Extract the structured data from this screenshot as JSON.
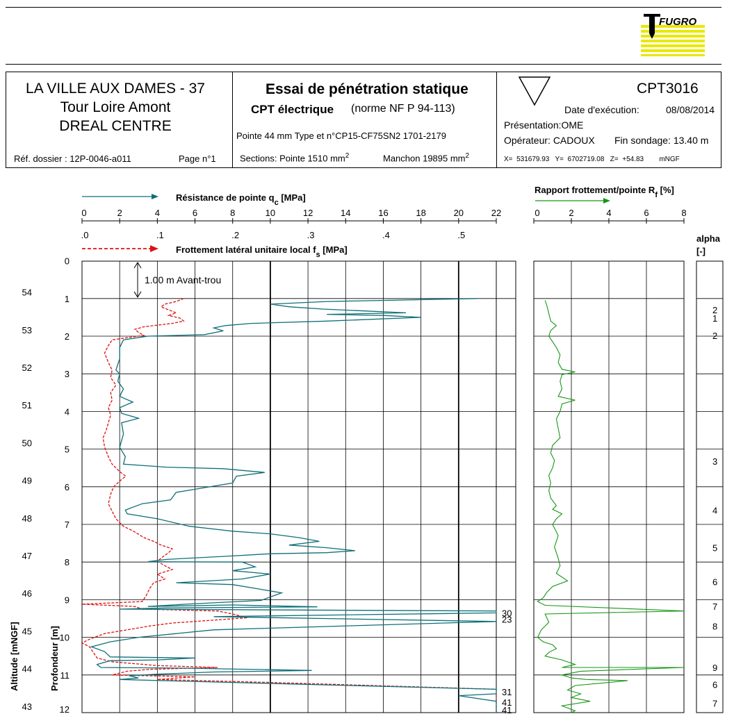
{
  "logo": {
    "text": "FUGRO",
    "color": "#e8e800"
  },
  "header": {
    "site_lines": [
      "LA VILLE AUX DAMES - 37",
      "Tour Loire Amont",
      "DREAL CENTRE"
    ],
    "ref_dossier": "Réf. dossier : 12P-0046-a011",
    "page": "Page n°1",
    "test_title": "Essai de pénétration statique",
    "cpt_type": "CPT électrique",
    "norme": "(norme NF P 94-113)",
    "pointe": "Pointe 44 mm  Type et n°CP15-CF75SN2   1701-2179",
    "sections_label": "Sections: Pointe 1510 mm",
    "manchon_label": "Manchon 19895  mm",
    "exponent": "2",
    "test_id": "CPT3016",
    "date_label": "Date d'exécution:",
    "date_value": "08/08/2014",
    "presentation": "Présentation:OME",
    "operateur": "Opérateur: CADOUX",
    "fin_sondage": "Fin sondage: 13.40 m",
    "coords": "X=  531679.93   Y=  6702719.08   Z=  +54.83        mNGF"
  },
  "chart_data": {
    "type": "line",
    "qc_axis": {
      "label": "Résistance de pointe q",
      "label_sub": "c",
      "label_unit": "[MPa]",
      "ticks": [
        "0",
        "2",
        "4",
        "6",
        "8",
        "10",
        "12",
        "14",
        "16",
        "18",
        "20",
        "22"
      ],
      "range": [
        0,
        22
      ]
    },
    "fs_axis": {
      "label": "Frottement latéral unitaire local  f",
      "label_sub": "s",
      "label_unit": "[MPa]",
      "ticks": [
        ".0",
        ".1",
        ".2",
        ".3",
        ".4",
        ".5"
      ],
      "range": [
        0,
        0.55
      ]
    },
    "rf_axis": {
      "label": "Rapport frottement/pointe R",
      "label_sub": "f",
      "label_unit": "[%]",
      "ticks": [
        "0",
        "2",
        "4",
        "6",
        "8"
      ],
      "range": [
        0,
        8
      ]
    },
    "depth_axis": {
      "label": "Profondeur [m]",
      "ticks": [
        "0",
        "1",
        "2",
        "3",
        "4",
        "5",
        "6",
        "7",
        "8",
        "9",
        "10",
        "11",
        "12"
      ],
      "range": [
        0,
        12
      ]
    },
    "altitude_axis": {
      "label": "Altitude [mNGF]",
      "ticks": [
        "54",
        "53",
        "52",
        "51",
        "50",
        "49",
        "48",
        "47",
        "46",
        "45",
        "44",
        "43"
      ]
    },
    "alpha_axis": {
      "label": "alpha",
      "unit": "[-]"
    },
    "predrill": {
      "text": "1.00  m Avant-trou",
      "depth": 1.0
    },
    "overflow_labels": [
      {
        "text": "30",
        "depth": 9.35
      },
      {
        "text": "23",
        "depth": 9.52
      },
      {
        "text": "31",
        "depth": 11.45
      },
      {
        "text": "41",
        "depth": 11.72
      },
      {
        "text": "41",
        "depth": 11.95
      }
    ],
    "alpha_labels": [
      {
        "text": "2",
        "depth": 1.3
      },
      {
        "text": "1",
        "depth": 1.52
      },
      {
        "text": "2",
        "depth": 1.98
      },
      {
        "text": "3",
        "depth": 5.32
      },
      {
        "text": "4",
        "depth": 6.62
      },
      {
        "text": "5",
        "depth": 7.62
      },
      {
        "text": "6",
        "depth": 8.52
      },
      {
        "text": "7",
        "depth": 9.18
      },
      {
        "text": "8",
        "depth": 9.7
      },
      {
        "text": "9",
        "depth": 10.8
      },
      {
        "text": "6",
        "depth": 11.25
      },
      {
        "text": "7",
        "depth": 11.75
      }
    ],
    "series": [
      {
        "name": "Résistance de pointe q",
        "color": "#0e6f78",
        "axis": "qc",
        "points": [
          [
            21.0,
            1.0
          ],
          [
            13.0,
            1.08
          ],
          [
            10.0,
            1.15
          ],
          [
            11.0,
            1.22
          ],
          [
            12.8,
            1.28
          ],
          [
            15.0,
            1.33
          ],
          [
            17.2,
            1.38
          ],
          [
            13.0,
            1.42
          ],
          [
            16.0,
            1.45
          ],
          [
            18.0,
            1.5
          ],
          [
            13.0,
            1.6
          ],
          [
            9.0,
            1.66
          ],
          [
            7.6,
            1.72
          ],
          [
            7.0,
            1.78
          ],
          [
            7.5,
            1.86
          ],
          [
            6.5,
            1.96
          ],
          [
            3.5,
            2.0
          ],
          [
            2.2,
            2.1
          ],
          [
            2.0,
            2.3
          ],
          [
            2.0,
            2.6
          ],
          [
            1.8,
            2.9
          ],
          [
            2.0,
            3.0
          ],
          [
            1.9,
            3.2
          ],
          [
            2.2,
            3.4
          ],
          [
            2.0,
            3.6
          ],
          [
            2.7,
            3.75
          ],
          [
            2.0,
            3.9
          ],
          [
            2.1,
            4.05
          ],
          [
            3.0,
            4.18
          ],
          [
            2.1,
            4.3
          ],
          [
            2.2,
            4.6
          ],
          [
            2.0,
            4.95
          ],
          [
            2.3,
            5.2
          ],
          [
            2.2,
            5.4
          ],
          [
            4.5,
            5.48
          ],
          [
            7.5,
            5.52
          ],
          [
            9.7,
            5.62
          ],
          [
            8.2,
            5.72
          ],
          [
            8.0,
            5.9
          ],
          [
            6.2,
            6.05
          ],
          [
            5.0,
            6.15
          ],
          [
            4.7,
            6.35
          ],
          [
            3.2,
            6.45
          ],
          [
            2.3,
            6.62
          ],
          [
            2.4,
            6.72
          ],
          [
            4.0,
            6.85
          ],
          [
            5.7,
            7.05
          ],
          [
            8.0,
            7.18
          ],
          [
            10.0,
            7.25
          ],
          [
            11.5,
            7.35
          ],
          [
            12.6,
            7.45
          ],
          [
            11.0,
            7.55
          ],
          [
            13.0,
            7.62
          ],
          [
            14.5,
            7.7
          ],
          [
            13.0,
            7.75
          ],
          [
            10.0,
            7.78
          ],
          [
            7.5,
            7.85
          ],
          [
            4.5,
            7.93
          ],
          [
            3.5,
            7.99
          ],
          [
            8.5,
            8.0
          ],
          [
            9.2,
            8.13
          ],
          [
            8.0,
            8.23
          ],
          [
            10.0,
            8.32
          ],
          [
            8.5,
            8.45
          ],
          [
            5.0,
            8.55
          ],
          [
            8.0,
            8.6
          ],
          [
            9.2,
            8.7
          ],
          [
            10.6,
            8.82
          ],
          [
            9.5,
            9.02
          ],
          [
            5.5,
            9.12
          ],
          [
            3.5,
            9.18
          ],
          [
            8.0,
            9.14
          ],
          [
            12.5,
            9.19
          ],
          [
            4.5,
            9.22
          ],
          [
            2.0,
            9.25
          ],
          [
            22.0,
            9.3
          ],
          [
            22.0,
            9.35
          ],
          [
            7.0,
            9.45
          ],
          [
            22.0,
            9.58
          ],
          [
            7.0,
            9.8
          ],
          [
            3.0,
            10.0
          ],
          [
            1.5,
            10.12
          ],
          [
            0.5,
            10.25
          ],
          [
            1.2,
            10.38
          ],
          [
            1.5,
            10.52
          ],
          [
            6.0,
            10.55
          ],
          [
            4.0,
            10.6
          ],
          [
            1.5,
            10.62
          ],
          [
            0.8,
            10.72
          ],
          [
            1.0,
            10.8
          ],
          [
            5.5,
            10.82
          ],
          [
            12.2,
            10.88
          ],
          [
            7.0,
            10.92
          ],
          [
            4.0,
            10.98
          ],
          [
            2.5,
            11.02
          ],
          [
            3.0,
            11.08
          ],
          [
            2.0,
            11.12
          ],
          [
            8.0,
            11.2
          ],
          [
            22.0,
            11.38
          ],
          [
            22.0,
            11.5
          ],
          [
            20.0,
            11.55
          ],
          [
            22.0,
            11.7
          ],
          [
            22.0,
            12.0
          ]
        ]
      },
      {
        "name": "Frottement latéral unitaire local  f",
        "color": "#dd1111",
        "axis": "fs",
        "dashed": true,
        "points": [
          [
            0.135,
            1.0
          ],
          [
            0.125,
            1.08
          ],
          [
            0.11,
            1.15
          ],
          [
            0.105,
            1.22
          ],
          [
            0.115,
            1.3
          ],
          [
            0.125,
            1.38
          ],
          [
            0.115,
            1.45
          ],
          [
            0.13,
            1.52
          ],
          [
            0.135,
            1.6
          ],
          [
            0.12,
            1.66
          ],
          [
            0.082,
            1.75
          ],
          [
            0.07,
            1.82
          ],
          [
            0.075,
            1.9
          ],
          [
            0.082,
            1.98
          ],
          [
            0.06,
            2.04
          ],
          [
            0.04,
            2.1
          ],
          [
            0.035,
            2.25
          ],
          [
            0.03,
            2.45
          ],
          [
            0.035,
            2.7
          ],
          [
            0.04,
            2.9
          ],
          [
            0.038,
            3.1
          ],
          [
            0.045,
            3.3
          ],
          [
            0.038,
            3.5
          ],
          [
            0.04,
            3.7
          ],
          [
            0.035,
            3.9
          ],
          [
            0.038,
            4.1
          ],
          [
            0.035,
            4.3
          ],
          [
            0.032,
            4.5
          ],
          [
            0.028,
            4.7
          ],
          [
            0.03,
            4.95
          ],
          [
            0.035,
            5.2
          ],
          [
            0.04,
            5.4
          ],
          [
            0.05,
            5.6
          ],
          [
            0.058,
            5.72
          ],
          [
            0.05,
            5.85
          ],
          [
            0.042,
            6.0
          ],
          [
            0.038,
            6.2
          ],
          [
            0.035,
            6.45
          ],
          [
            0.04,
            6.65
          ],
          [
            0.045,
            6.85
          ],
          [
            0.055,
            7.05
          ],
          [
            0.07,
            7.2
          ],
          [
            0.082,
            7.35
          ],
          [
            0.095,
            7.45
          ],
          [
            0.105,
            7.55
          ],
          [
            0.12,
            7.65
          ],
          [
            0.115,
            7.75
          ],
          [
            0.108,
            7.85
          ],
          [
            0.1,
            7.98
          ],
          [
            0.11,
            8.1
          ],
          [
            0.12,
            8.2
          ],
          [
            0.1,
            8.32
          ],
          [
            0.11,
            8.45
          ],
          [
            0.095,
            8.55
          ],
          [
            0.09,
            8.7
          ],
          [
            0.085,
            8.9
          ],
          [
            0.08,
            9.05
          ],
          [
            0.0,
            9.12
          ],
          [
            0.07,
            9.18
          ],
          [
            0.08,
            9.25
          ],
          [
            0.18,
            9.3
          ],
          [
            0.2,
            9.38
          ],
          [
            0.22,
            9.48
          ],
          [
            0.17,
            9.55
          ],
          [
            0.12,
            9.62
          ],
          [
            0.09,
            9.7
          ],
          [
            0.06,
            9.8
          ],
          [
            0.03,
            9.9
          ],
          [
            0.01,
            10.05
          ],
          [
            0.0,
            10.15
          ],
          [
            0.01,
            10.25
          ],
          [
            0.015,
            10.4
          ],
          [
            0.02,
            10.55
          ],
          [
            0.04,
            10.65
          ],
          [
            0.1,
            10.75
          ],
          [
            0.18,
            10.8
          ],
          [
            0.09,
            10.85
          ],
          [
            0.06,
            10.9
          ],
          [
            0.04,
            11.0
          ],
          [
            0.15,
            11.05
          ],
          [
            0.1,
            11.12
          ],
          [
            0.25,
            11.2
          ],
          [
            0.55,
            11.38
          ],
          [
            0.55,
            12.0
          ]
        ]
      },
      {
        "name": "Rapport frottement/pointe R",
        "color": "#169616",
        "axis": "rf",
        "points": [
          [
            0.6,
            1.05
          ],
          [
            0.7,
            1.2
          ],
          [
            0.8,
            1.4
          ],
          [
            0.9,
            1.6
          ],
          [
            1.2,
            1.72
          ],
          [
            0.9,
            1.85
          ],
          [
            0.8,
            2.0
          ],
          [
            1.0,
            2.15
          ],
          [
            1.2,
            2.3
          ],
          [
            1.4,
            2.5
          ],
          [
            1.3,
            2.7
          ],
          [
            1.5,
            2.88
          ],
          [
            2.2,
            2.95
          ],
          [
            1.5,
            3.02
          ],
          [
            1.4,
            3.2
          ],
          [
            1.5,
            3.4
          ],
          [
            1.3,
            3.6
          ],
          [
            2.2,
            3.7
          ],
          [
            1.5,
            3.8
          ],
          [
            1.4,
            4.0
          ],
          [
            1.2,
            4.2
          ],
          [
            1.3,
            4.45
          ],
          [
            1.4,
            4.7
          ],
          [
            1.0,
            4.9
          ],
          [
            0.9,
            5.1
          ],
          [
            1.1,
            5.3
          ],
          [
            1.0,
            5.5
          ],
          [
            0.8,
            5.7
          ],
          [
            0.9,
            5.9
          ],
          [
            0.8,
            6.1
          ],
          [
            0.9,
            6.3
          ],
          [
            1.2,
            6.5
          ],
          [
            1.0,
            6.6
          ],
          [
            1.5,
            6.72
          ],
          [
            1.2,
            6.85
          ],
          [
            1.0,
            7.0
          ],
          [
            1.3,
            7.3
          ],
          [
            1.1,
            7.6
          ],
          [
            1.3,
            7.9
          ],
          [
            1.4,
            8.1
          ],
          [
            1.2,
            8.3
          ],
          [
            1.8,
            8.5
          ],
          [
            1.0,
            8.65
          ],
          [
            0.7,
            8.8
          ],
          [
            0.5,
            8.95
          ],
          [
            0.2,
            9.05
          ],
          [
            0.6,
            9.15
          ],
          [
            8.0,
            9.3
          ],
          [
            0.6,
            9.38
          ],
          [
            0.8,
            9.6
          ],
          [
            0.4,
            9.8
          ],
          [
            0.2,
            10.0
          ],
          [
            0.5,
            10.12
          ],
          [
            1.0,
            10.2
          ],
          [
            1.2,
            10.3
          ],
          [
            0.8,
            10.4
          ],
          [
            0.6,
            10.5
          ],
          [
            1.5,
            10.6
          ],
          [
            2.2,
            10.72
          ],
          [
            1.5,
            10.8
          ],
          [
            8.0,
            10.8
          ],
          [
            2.5,
            10.9
          ],
          [
            1.5,
            11.0
          ],
          [
            2.0,
            11.08
          ],
          [
            2.8,
            11.12
          ],
          [
            5.0,
            11.15
          ],
          [
            4.0,
            11.2
          ],
          [
            2.2,
            11.28
          ],
          [
            1.8,
            11.4
          ],
          [
            2.5,
            11.5
          ],
          [
            2.0,
            11.6
          ],
          [
            3.0,
            11.7
          ],
          [
            1.5,
            11.82
          ],
          [
            2.2,
            11.95
          ],
          [
            2.0,
            12.0
          ]
        ]
      }
    ]
  }
}
